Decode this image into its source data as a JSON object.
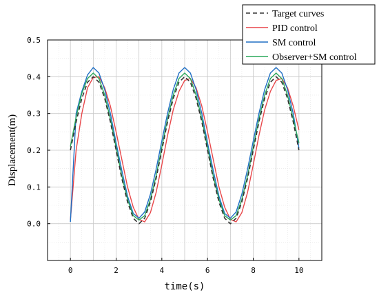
{
  "chart_data": {
    "type": "line",
    "title": "",
    "xlabel": "time(s)",
    "ylabel": "Displacement(m)",
    "xlim": [
      -1,
      11
    ],
    "ylim": [
      -0.1,
      0.5
    ],
    "xticks": [
      0,
      2,
      4,
      6,
      8,
      10
    ],
    "yticks": [
      0.0,
      0.1,
      0.2,
      0.3,
      0.4,
      0.5
    ],
    "xtick_labels": [
      "0",
      "2",
      "4",
      "6",
      "8",
      "10"
    ],
    "ytick_labels": [
      "0.0",
      "0.1",
      "0.2",
      "0.3",
      "0.4",
      "0.5"
    ],
    "grid": true,
    "legend": "top-right",
    "x": [
      0,
      0.25,
      0.5,
      0.75,
      1,
      1.25,
      1.5,
      1.75,
      2,
      2.25,
      2.5,
      2.75,
      3,
      3.25,
      3.5,
      3.75,
      4,
      4.25,
      4.5,
      4.75,
      5,
      5.25,
      5.5,
      5.75,
      6,
      6.25,
      6.5,
      6.75,
      7,
      7.25,
      7.5,
      7.75,
      8,
      8.25,
      8.5,
      8.75,
      9,
      9.25,
      9.5,
      9.75,
      10
    ],
    "series": [
      {
        "name": "Target curves",
        "color": "#333333",
        "dash": "6,4",
        "values": [
          0.2,
          0.277,
          0.341,
          0.385,
          0.4,
          0.385,
          0.341,
          0.277,
          0.2,
          0.123,
          0.059,
          0.015,
          0.0,
          0.015,
          0.059,
          0.123,
          0.2,
          0.277,
          0.341,
          0.385,
          0.4,
          0.385,
          0.341,
          0.277,
          0.2,
          0.123,
          0.059,
          0.015,
          0.0,
          0.015,
          0.059,
          0.123,
          0.2,
          0.277,
          0.341,
          0.385,
          0.4,
          0.385,
          0.341,
          0.277,
          0.2
        ]
      },
      {
        "name": "PID control",
        "color": "#e8474a",
        "dash": "",
        "values": [
          0.01,
          0.2,
          0.3,
          0.37,
          0.398,
          0.4,
          0.37,
          0.32,
          0.25,
          0.175,
          0.1,
          0.045,
          0.012,
          0.005,
          0.03,
          0.085,
          0.16,
          0.24,
          0.31,
          0.36,
          0.39,
          0.395,
          0.37,
          0.32,
          0.25,
          0.175,
          0.1,
          0.045,
          0.012,
          0.005,
          0.03,
          0.085,
          0.16,
          0.24,
          0.31,
          0.36,
          0.39,
          0.395,
          0.37,
          0.32,
          0.255
        ]
      },
      {
        "name": "SM control",
        "color": "#1f6fc4",
        "dash": "",
        "values": [
          0.005,
          0.3,
          0.36,
          0.405,
          0.425,
          0.41,
          0.365,
          0.3,
          0.22,
          0.145,
          0.075,
          0.028,
          0.015,
          0.032,
          0.08,
          0.148,
          0.225,
          0.3,
          0.365,
          0.41,
          0.425,
          0.41,
          0.365,
          0.3,
          0.22,
          0.145,
          0.075,
          0.028,
          0.015,
          0.032,
          0.08,
          0.148,
          0.225,
          0.3,
          0.365,
          0.41,
          0.425,
          0.41,
          0.365,
          0.3,
          0.205
        ]
      },
      {
        "name": "Observer+SM control",
        "color": "#2aa85a",
        "dash": "",
        "values": [
          0.21,
          0.29,
          0.355,
          0.395,
          0.41,
          0.395,
          0.35,
          0.285,
          0.208,
          0.13,
          0.066,
          0.022,
          0.01,
          0.022,
          0.066,
          0.13,
          0.208,
          0.285,
          0.35,
          0.395,
          0.41,
          0.395,
          0.35,
          0.285,
          0.208,
          0.13,
          0.066,
          0.022,
          0.01,
          0.022,
          0.066,
          0.13,
          0.208,
          0.285,
          0.35,
          0.395,
          0.41,
          0.395,
          0.35,
          0.285,
          0.22
        ]
      }
    ]
  }
}
